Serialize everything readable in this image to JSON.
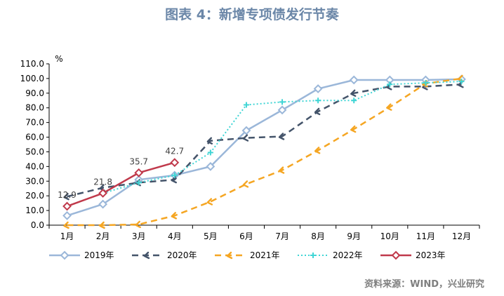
{
  "title": "图表 4：新增专项债发行节奏",
  "source": "资料来源：WIND，兴业研究",
  "chart_data": {
    "type": "line",
    "title": "图表 4：新增专项债发行节奏",
    "ylabel": "%",
    "ylim": [
      0,
      110
    ],
    "yticks": [
      0,
      10,
      20,
      30,
      40,
      50,
      60,
      70,
      80,
      90,
      100,
      110
    ],
    "ytick_labels": [
      "0.0",
      "10.0",
      "20.0",
      "30.0",
      "40.0",
      "50.0",
      "60.0",
      "70.0",
      "80.0",
      "90.0",
      "100.0",
      "110.0"
    ],
    "categories": [
      "1月",
      "2月",
      "3月",
      "4月",
      "5月",
      "6月",
      "7月",
      "8月",
      "9月",
      "10月",
      "11月",
      "12月"
    ],
    "legend_position": "bottom",
    "series": [
      {
        "name": "2019年",
        "color": "#9bb7d9",
        "dash": "solid",
        "marker": "diamond",
        "values": [
          6.5,
          14.3,
          31,
          34,
          40,
          64.5,
          78.5,
          93,
          99,
          99,
          99,
          99.5
        ]
      },
      {
        "name": "2020年",
        "color": "#44546a",
        "dash": "dash",
        "marker": "arrow",
        "values": [
          19.5,
          25.5,
          29,
          31,
          57.5,
          59.5,
          60.5,
          77.5,
          90,
          94.5,
          94.5,
          96
        ]
      },
      {
        "name": "2021年",
        "color": "#f5a623",
        "dash": "dash",
        "marker": "arrow",
        "values": [
          0,
          0,
          0.5,
          6.5,
          16,
          28,
          37.5,
          51,
          65.5,
          80.5,
          96.5,
          100
        ]
      },
      {
        "name": "2022年",
        "color": "#40d5d5",
        "dash": "dot",
        "marker": "plus",
        "values": [
          12.9,
          21.8,
          29,
          34,
          49.5,
          82,
          84,
          85,
          85,
          96,
          97,
          98
        ]
      },
      {
        "name": "2023年",
        "color": "#c0394b",
        "dash": "solid",
        "marker": "diamond",
        "values": [
          12.9,
          21.8,
          35.7,
          42.7,
          null,
          null,
          null,
          null,
          null,
          null,
          null,
          null
        ]
      }
    ],
    "data_labels": [
      {
        "series": "2023年",
        "category": "1月",
        "text": "12.9"
      },
      {
        "series": "2023年",
        "category": "2月",
        "text": "21.8"
      },
      {
        "series": "2023年",
        "category": "3月",
        "text": "35.7"
      },
      {
        "series": "2023年",
        "category": "4月",
        "text": "42.7"
      }
    ]
  }
}
